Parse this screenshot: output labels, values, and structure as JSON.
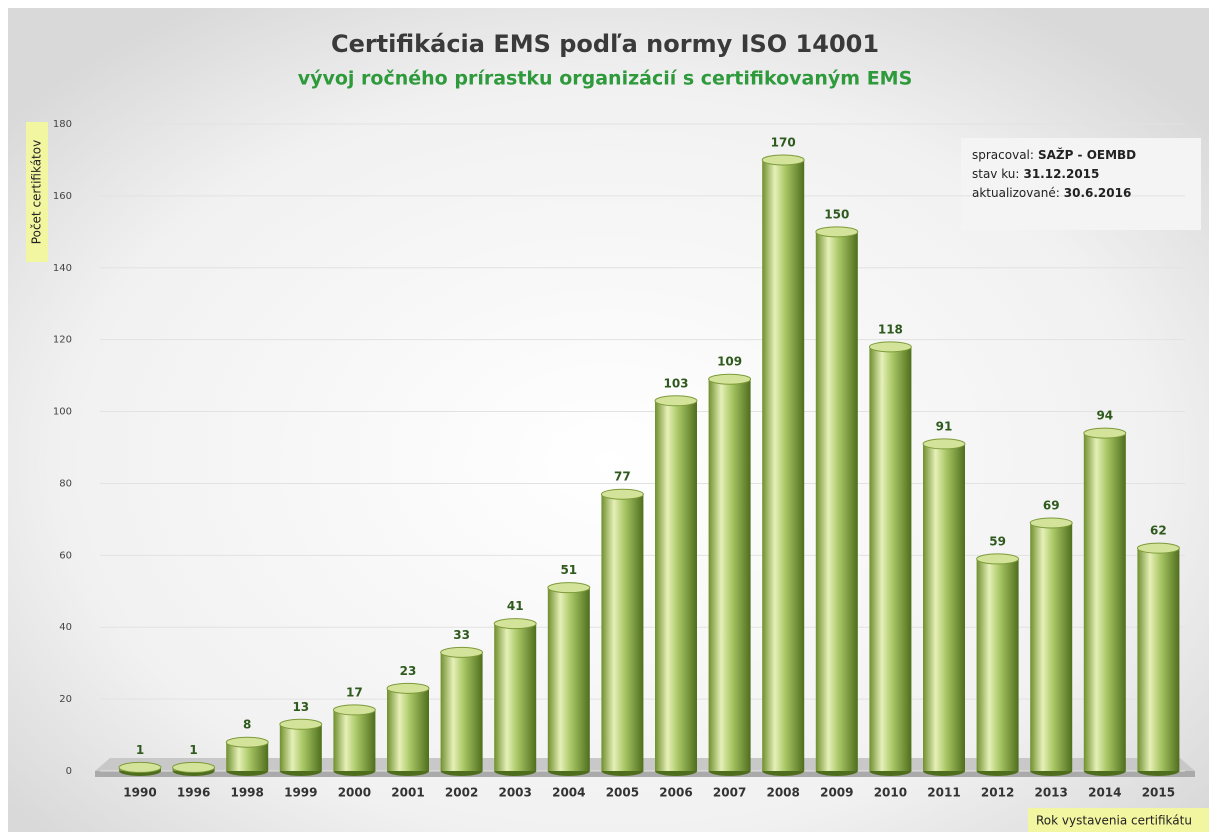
{
  "chart_data": {
    "type": "bar",
    "title": "Certifikácia EMS podľa normy ISO 14001",
    "subtitle": "vývoj ročného prírastku organizácií s certifikovaným EMS",
    "y_label": "Počet certifikátov",
    "x_label": "Rok vystavenia certifikátu",
    "info": [
      {
        "label": "spracoval:",
        "value": "SAŽP - OEMBD"
      },
      {
        "label": "stav ku:",
        "value": "31.12.2015"
      },
      {
        "label": "aktualizované:",
        "value": "30.6.2016"
      }
    ],
    "categories": [
      "1990",
      "1996",
      "1998",
      "1999",
      "2000",
      "2001",
      "2002",
      "2003",
      "2004",
      "2005",
      "2006",
      "2007",
      "2008",
      "2009",
      "2010",
      "2011",
      "2012",
      "2013",
      "2014",
      "2015"
    ],
    "values": [
      1,
      1,
      8,
      13,
      17,
      23,
      33,
      41,
      51,
      77,
      103,
      109,
      170,
      150,
      118,
      91,
      59,
      69,
      94,
      62
    ],
    "color": "#8fb24a",
    "ylim": [
      0,
      180
    ],
    "yticks": [
      0,
      20,
      40,
      60,
      80,
      100,
      120,
      140,
      160,
      180
    ],
    "grid": true
  }
}
